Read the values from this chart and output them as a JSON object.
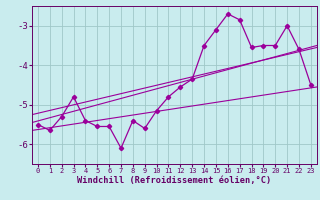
{
  "x": [
    0,
    1,
    2,
    3,
    4,
    5,
    6,
    7,
    8,
    9,
    10,
    11,
    12,
    13,
    14,
    15,
    16,
    17,
    18,
    19,
    20,
    21,
    22,
    23
  ],
  "y_main": [
    -5.5,
    -5.65,
    -5.3,
    -4.8,
    -5.4,
    -5.55,
    -5.55,
    -6.1,
    -5.4,
    -5.6,
    -5.15,
    -4.8,
    -4.55,
    -4.35,
    -3.5,
    -3.1,
    -2.7,
    -2.85,
    -3.55,
    -3.5,
    -3.5,
    -3.0,
    -3.6,
    -4.5
  ],
  "background_color": "#c9ecee",
  "line_color": "#9b009b",
  "grid_color": "#a0c8c8",
  "axis_color": "#660066",
  "xlabel": "Windchill (Refroidissement éolien,°C)",
  "ylim": [
    -6.5,
    -2.5
  ],
  "xlim": [
    -0.5,
    23.5
  ],
  "yticks": [
    -6,
    -5,
    -4,
    -3
  ],
  "xticks": [
    0,
    1,
    2,
    3,
    4,
    5,
    6,
    7,
    8,
    9,
    10,
    11,
    12,
    13,
    14,
    15,
    16,
    17,
    18,
    19,
    20,
    21,
    22,
    23
  ],
  "reg_lines": [
    {
      "x0": -0.5,
      "y0": -5.45,
      "x1": 23.5,
      "y1": -3.5
    },
    {
      "x0": -0.5,
      "y0": -5.25,
      "x1": 23.5,
      "y1": -3.55
    },
    {
      "x0": -0.5,
      "y0": -5.65,
      "x1": 23.5,
      "y1": -4.55
    }
  ]
}
